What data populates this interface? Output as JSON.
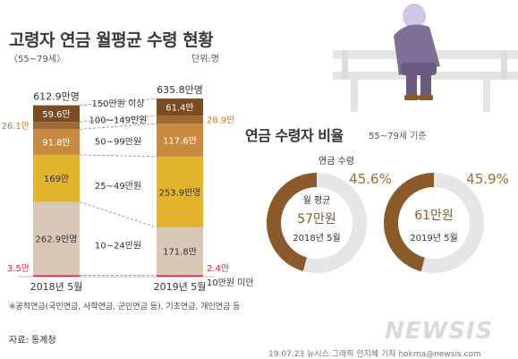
{
  "header": {
    "title": "고령자 연금 월평균 수령 현황",
    "subtitle": "〈55~79세〉",
    "unit": "단위:명"
  },
  "ratio": {
    "title": "연금 수령자 비율",
    "subtitle": "55~79세 기준"
  },
  "footnote": "※공적연금(국민연금, 사학연금, 군인연금 등), 기초연금, 개인연금 등",
  "source": "자료: 통계청",
  "credit": "19.07.23 뉴시스 그래픽 안지혜 기자 hokma@newsis.com",
  "logo": "NEWSIS",
  "colors": {
    "seg_lt10": "#d4233a",
    "seg_10_24": "#d9c8b8",
    "seg_25_49": "#e2b42d",
    "seg_50_99": "#c98a3f",
    "seg_100_149": "#9c6b34",
    "seg_150plus": "#7a4c22",
    "donut_fill": "#8a5a2b",
    "donut_track": "#e6e6e6"
  },
  "chart_data": [
    {
      "type": "bar",
      "stacked": true,
      "categories": [
        "2018년 5월",
        "2019년 5월"
      ],
      "totals": [
        612.9,
        635.8
      ],
      "total_labels": [
        "612.9만명",
        "635.8만명"
      ],
      "series": [
        {
          "name": "10만원 미만",
          "values": [
            3.5,
            2.4
          ],
          "labels": [
            "3.5만",
            "2.4만"
          ],
          "color_key": "seg_lt10"
        },
        {
          "name": "10~24만원",
          "values": [
            262.9,
            171.8
          ],
          "labels": [
            "262.9만명",
            "171.8만"
          ],
          "color_key": "seg_10_24"
        },
        {
          "name": "25~49만원",
          "values": [
            169,
            253.9
          ],
          "labels": [
            "169만",
            "253.9만명"
          ],
          "color_key": "seg_25_49"
        },
        {
          "name": "50~99만원",
          "values": [
            91.8,
            117.6
          ],
          "labels": [
            "91.8만",
            "117.6만"
          ],
          "color_key": "seg_50_99"
        },
        {
          "name": "100~149만원",
          "values": [
            26.1,
            28.9
          ],
          "labels": [
            "26.1만",
            "28.9만"
          ],
          "color_key": "seg_100_149"
        },
        {
          "name": "150만원 이상",
          "values": [
            59.6,
            61.4
          ],
          "labels": [
            "59.6만",
            "61.4만"
          ],
          "color_key": "seg_150plus"
        }
      ]
    },
    {
      "type": "pie",
      "donut": true,
      "category": "2018년 5월",
      "value_percent": 45.6,
      "percent_label": "45.6%",
      "ring_label": "연금 수령",
      "center_label": "월 평균",
      "center_value": "57만원",
      "center_date": "2018년 5월"
    },
    {
      "type": "pie",
      "donut": true,
      "category": "2019년 5월",
      "value_percent": 45.9,
      "percent_label": "45.9%",
      "center_value": "61만원",
      "center_date": "2019년 5월"
    }
  ]
}
